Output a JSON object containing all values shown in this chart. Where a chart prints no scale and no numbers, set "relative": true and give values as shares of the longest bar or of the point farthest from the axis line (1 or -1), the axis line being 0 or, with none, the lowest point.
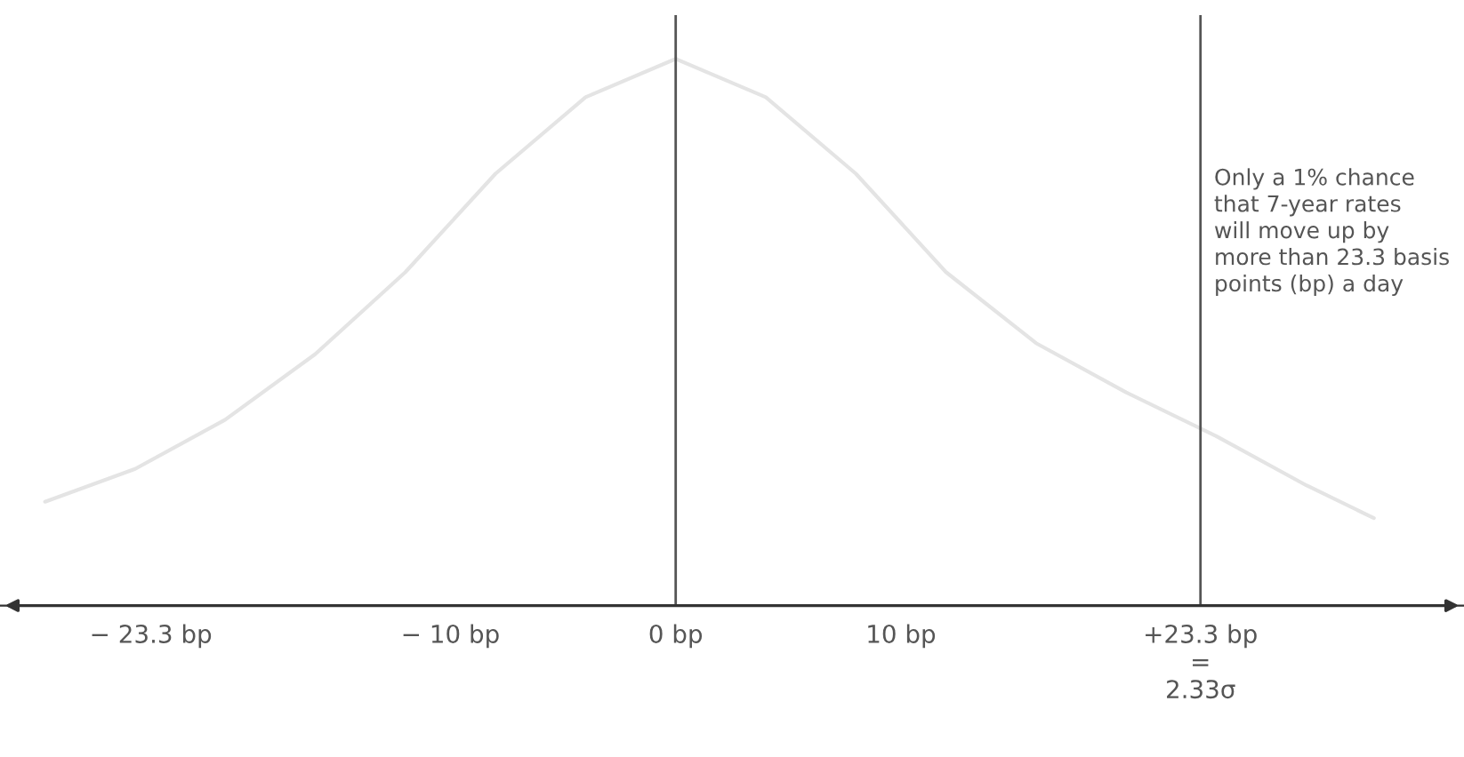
{
  "chart_data": {
    "type": "line",
    "relative": true,
    "color": "#e4e4e4",
    "x": [
      -28,
      -24,
      -20,
      -16,
      -12,
      -8,
      -4,
      0,
      4,
      8,
      12,
      16,
      20,
      24,
      28,
      31
    ],
    "values": [
      0.19,
      0.25,
      0.34,
      0.46,
      0.61,
      0.79,
      0.93,
      1,
      0.93,
      0.79,
      0.61,
      0.48,
      0.39,
      0.31,
      0.22,
      0.16
    ],
    "xlim": [
      -30,
      35
    ],
    "xticks": [
      {
        "value": -23.3,
        "label": "− 23.3 bp"
      },
      {
        "value": -10,
        "label": "− 10 bp"
      },
      {
        "value": 0,
        "label": "0 bp"
      },
      {
        "value": 10,
        "label": "10 bp"
      },
      {
        "value": 23.3,
        "label": "+23.3 bp\n=\n2.33σ"
      }
    ],
    "ref_lines": [
      {
        "axis": "x",
        "value": 0,
        "color": "#555555"
      },
      {
        "axis": "x",
        "value": 23.3,
        "color": "#555555",
        "label": "Only a 1% chance\nthat 7-year rates\nwill move up by\nmore than 23.3 basis\npoints (bp) a day"
      }
    ],
    "grid": false
  }
}
